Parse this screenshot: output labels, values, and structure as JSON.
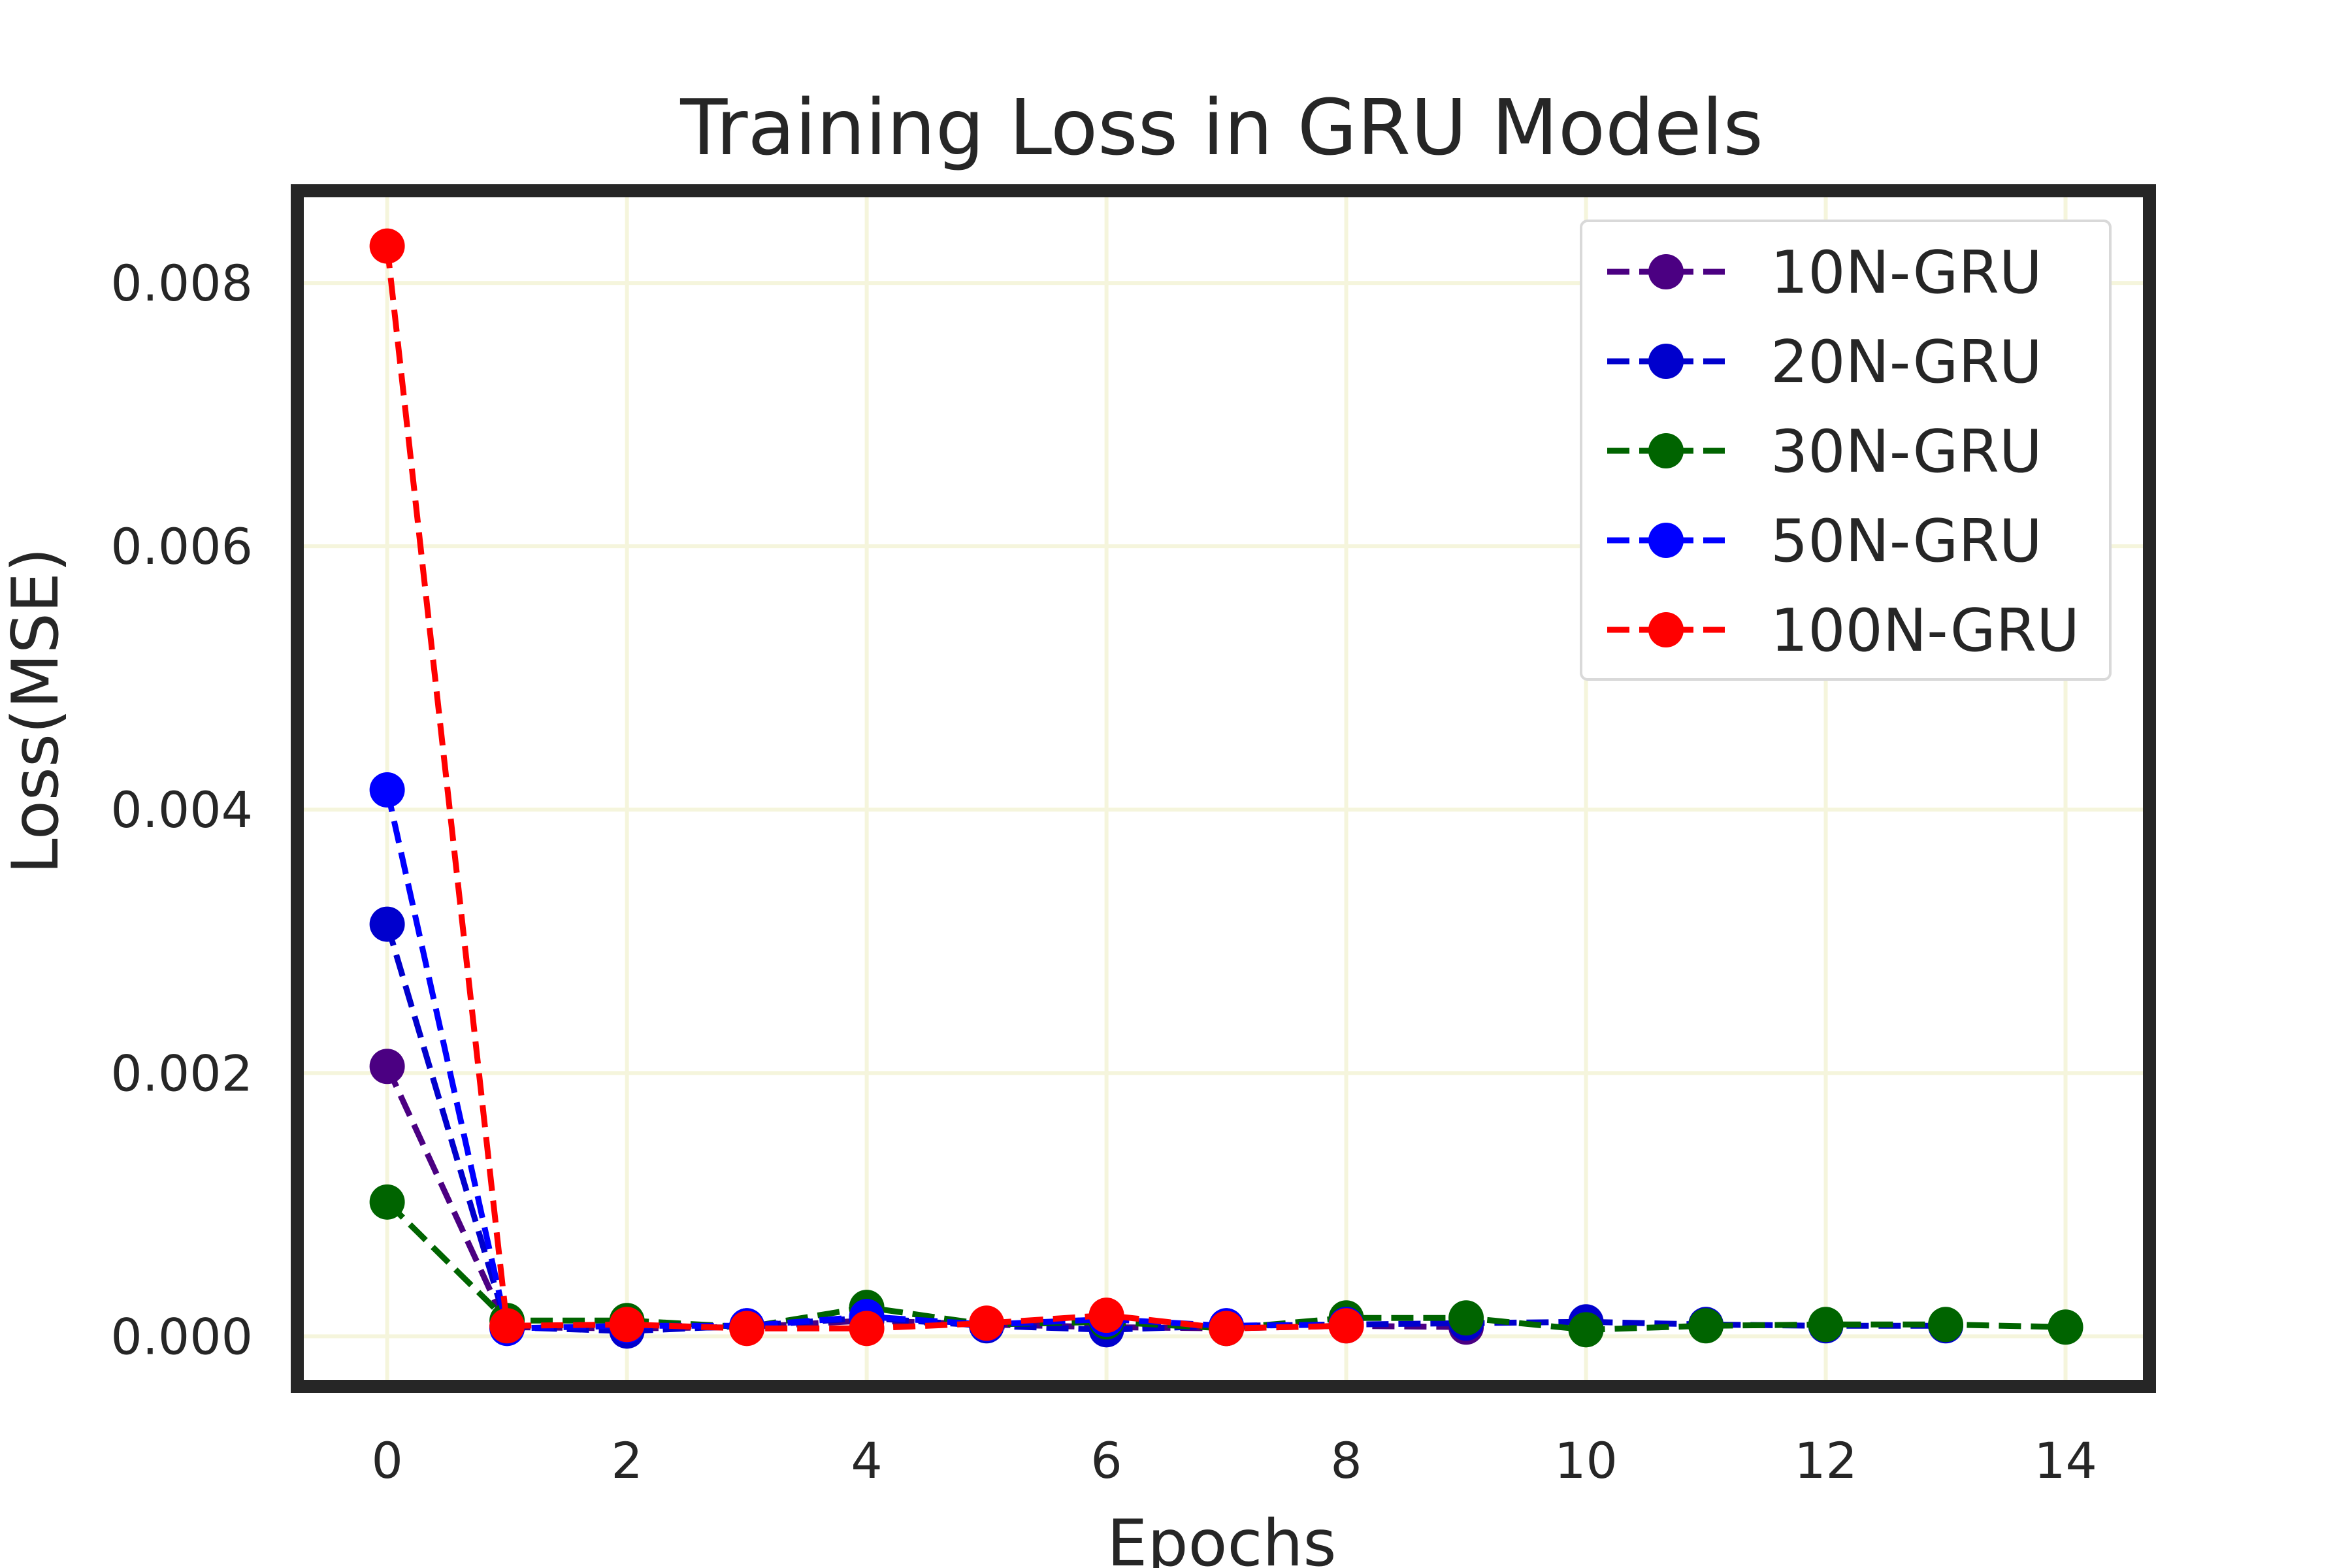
{
  "chart_data": {
    "type": "line",
    "title": "Training Loss in GRU Models",
    "xlabel": "Epochs",
    "ylabel": "Loss(MSE)",
    "xlim": [
      -0.75,
      14.7
    ],
    "ylim": [
      -0.00038,
      0.0087
    ],
    "xticks": [
      0,
      2,
      4,
      6,
      8,
      10,
      12,
      14
    ],
    "yticks": [
      0.0,
      0.002,
      0.004,
      0.006,
      0.008
    ],
    "ytick_labels": [
      "0.000",
      "0.002",
      "0.004",
      "0.006",
      "0.008"
    ],
    "grid": true,
    "legend_position": "top-right",
    "line_style": "dashed",
    "marker": "circle",
    "series": [
      {
        "name": "10N-GRU",
        "color": "#4b0082",
        "x": [
          0,
          1,
          2,
          3,
          4,
          5,
          6,
          7,
          8,
          9
        ],
        "y": [
          0.00205,
          7e-05,
          6e-05,
          7e-05,
          0.00012,
          9e-05,
          7e-05,
          6e-05,
          8e-05,
          7e-05
        ]
      },
      {
        "name": "20N-GRU",
        "color": "#0000cd",
        "x": [
          0,
          1,
          2,
          3,
          4,
          5,
          6,
          7,
          8,
          9,
          10,
          11,
          12,
          13
        ],
        "y": [
          0.00313,
          7e-05,
          4e-05,
          8e-05,
          0.00014,
          8e-05,
          5e-05,
          8e-05,
          9e-05,
          0.0001,
          0.00011,
          9e-05,
          8e-05,
          8e-05
        ]
      },
      {
        "name": "30N-GRU",
        "color": "#006400",
        "x": [
          0,
          1,
          2,
          3,
          4,
          5,
          6,
          7,
          8,
          9,
          10,
          11,
          12,
          13,
          14
        ],
        "y": [
          0.00102,
          0.00012,
          0.00012,
          7e-05,
          0.00022,
          9e-05,
          0.00011,
          6e-05,
          0.00014,
          0.00014,
          5e-05,
          8e-05,
          9e-05,
          9e-05,
          7e-05
        ]
      },
      {
        "name": "50N-GRU",
        "color": "#0000ff",
        "x": [
          0,
          1,
          2,
          3,
          4,
          5,
          6,
          7,
          8
        ],
        "y": [
          0.00415,
          6e-05,
          8e-05,
          8e-05,
          0.00015,
          9e-05,
          0.00013,
          8e-05,
          9e-05
        ]
      },
      {
        "name": "100N-GRU",
        "color": "#ff0000",
        "x": [
          0,
          1,
          2,
          3,
          4,
          5,
          6,
          7,
          8
        ],
        "y": [
          0.00828,
          8e-05,
          9e-05,
          6e-05,
          6e-05,
          0.0001,
          0.00016,
          6e-05,
          8e-05
        ]
      }
    ]
  }
}
